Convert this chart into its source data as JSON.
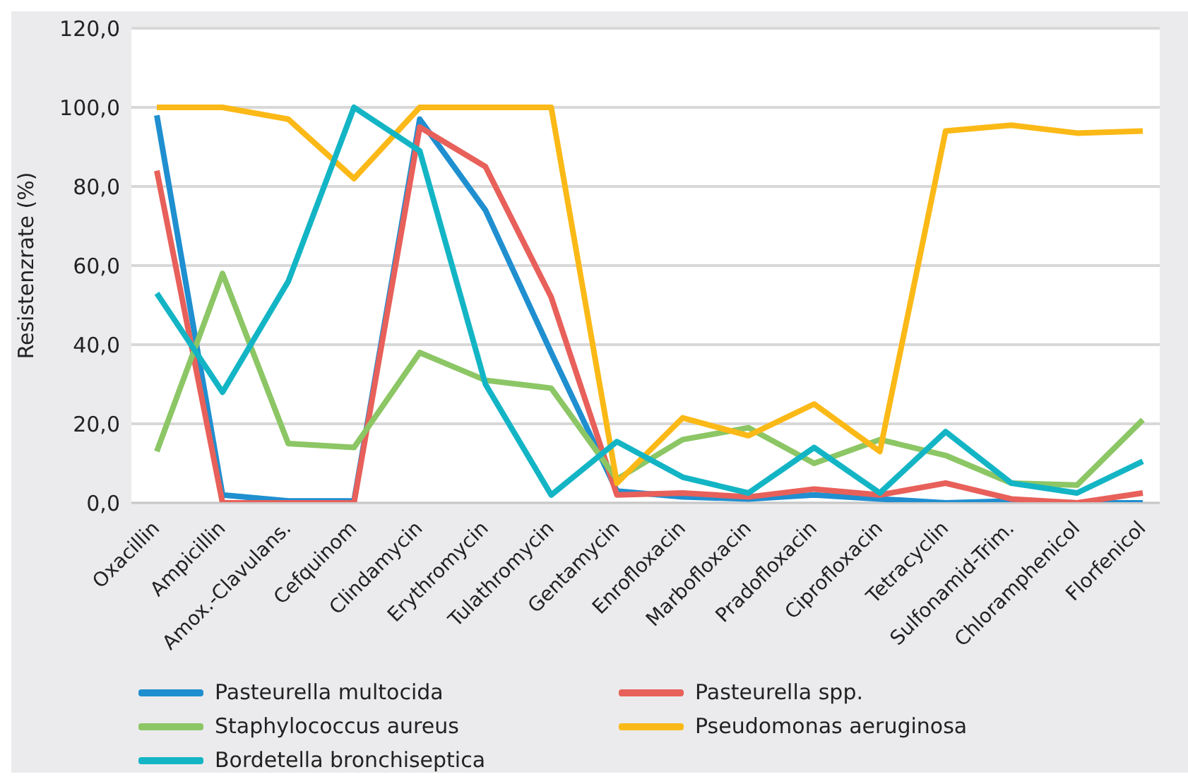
{
  "chart_data": {
    "type": "line",
    "ylabel": "Resistenzrate (%)",
    "categories": [
      "Oxacillin",
      "Ampicillin",
      "Amox.-Clavulans.",
      "Cefquinom",
      "Clindamycin",
      "Erythromycin",
      "Tulathromycin",
      "Gentamycin",
      "Enrofloxacin",
      "Marbofloxacin",
      "Pradofloxacin",
      "Ciprofloxacin",
      "Tetracyclin",
      "Sulfonamid-Trim.",
      "Chloramphenicol",
      "Florfenicol"
    ],
    "series": [
      {
        "name": "Pasteurella multocida",
        "color": "#1f8fd0",
        "values": [
          98,
          2,
          0.5,
          0.5,
          97,
          74,
          38,
          3,
          1.5,
          1,
          2,
          1,
          0,
          0.5,
          0,
          0
        ]
      },
      {
        "name": "Pasteurella spp.",
        "color": "#e8605a",
        "values": [
          84,
          0,
          0,
          0,
          95,
          85,
          52,
          2,
          2.5,
          1.5,
          3.5,
          2,
          5,
          1,
          0,
          2.5
        ]
      },
      {
        "name": "Staphylococcus aureus",
        "color": "#8cc665",
        "values": [
          13,
          58,
          15,
          14,
          38,
          31,
          29,
          6,
          16,
          19,
          10,
          16,
          12,
          5,
          4.5,
          21
        ]
      },
      {
        "name": "Pseudomonas aeruginosa",
        "color": "#fbb917",
        "values": [
          100,
          100,
          97,
          82,
          100,
          100,
          100,
          5,
          21.5,
          17,
          25,
          13,
          94,
          95.5,
          93.5,
          94
        ]
      },
      {
        "name": "Bordetella bronchiseptica",
        "color": "#13b5c5",
        "values": [
          53,
          28,
          56,
          100,
          89,
          30,
          2,
          15.5,
          6.5,
          2.5,
          14,
          2.5,
          18,
          5,
          2.5,
          10.5
        ]
      }
    ],
    "ylim": [
      0,
      120
    ],
    "yticks": [
      {
        "value": 0,
        "label": "0,0"
      },
      {
        "value": 20,
        "label": "20,0"
      },
      {
        "value": 40,
        "label": "40,0"
      },
      {
        "value": 60,
        "label": "60,0"
      },
      {
        "value": 80,
        "label": "80,0"
      },
      {
        "value": 100,
        "label": "100,0"
      },
      {
        "value": 120,
        "label": "120,0"
      }
    ],
    "grid": "y",
    "legend": "bottom",
    "marker": "none",
    "line_style": "solid"
  }
}
